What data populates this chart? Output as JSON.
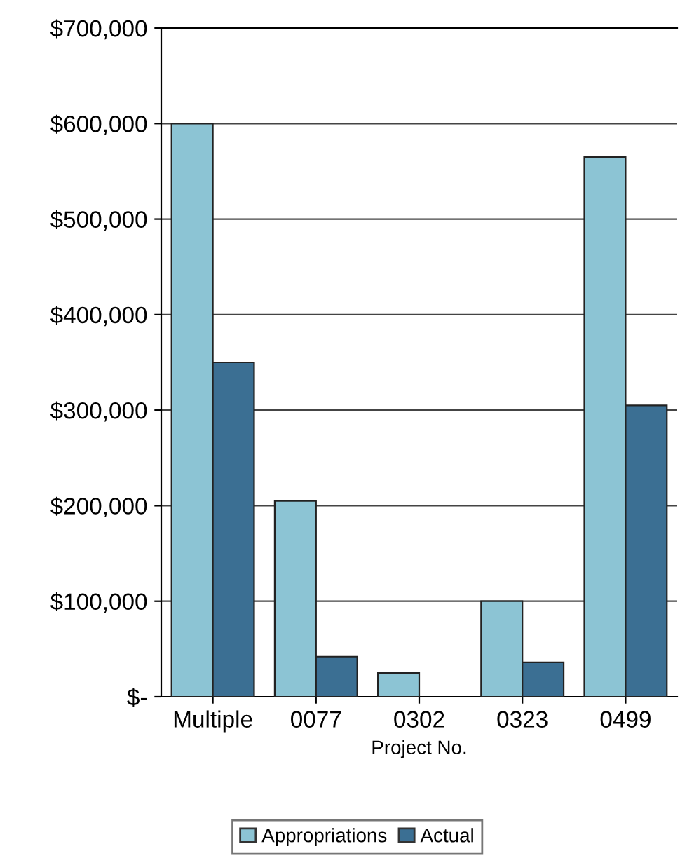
{
  "chart_data": {
    "type": "bar",
    "xlabel": "Project No.",
    "categories": [
      "Multiple",
      "0077",
      "0302",
      "0323",
      "0499"
    ],
    "series": [
      {
        "name": "Appropriations",
        "color": "#8cc4d4",
        "values": [
          600000,
          205000,
          25000,
          100000,
          565000
        ]
      },
      {
        "name": "Actual",
        "color": "#3b6f93",
        "values": [
          350000,
          42000,
          null,
          36000,
          305000
        ]
      }
    ],
    "ylim": [
      0,
      700000
    ],
    "yticks": [
      {
        "value": 0,
        "label": "$-"
      },
      {
        "value": 100000,
        "label": "$100,000"
      },
      {
        "value": 200000,
        "label": "$200,000"
      },
      {
        "value": 300000,
        "label": "$300,000"
      },
      {
        "value": 400000,
        "label": "$400,000"
      },
      {
        "value": 500000,
        "label": "$500,000"
      },
      {
        "value": 600000,
        "label": "$600,000"
      },
      {
        "value": 700000,
        "label": "$700,000"
      }
    ],
    "grid": "y",
    "legend": "bottom"
  }
}
